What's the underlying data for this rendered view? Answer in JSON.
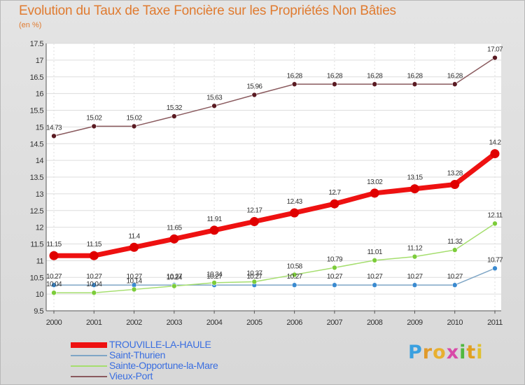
{
  "title": "Evolution du Taux de Taxe Foncière sur les Propriétés Non Bâties",
  "unit": "(en %)",
  "chart_data": {
    "type": "line",
    "categories": [
      "2000",
      "2001",
      "2002",
      "2003",
      "2004",
      "2005",
      "2006",
      "2007",
      "2008",
      "2009",
      "2010",
      "2011"
    ],
    "ylim": [
      9.5,
      17.5
    ],
    "yticks": [
      "9.5",
      "10",
      "10.5",
      "11",
      "11.5",
      "12",
      "12.5",
      "13",
      "13.5",
      "14",
      "14.5",
      "15",
      "15.5",
      "16",
      "16.5",
      "17",
      "17.5"
    ],
    "grid": true,
    "series": [
      {
        "name": "TROUVILLE-LA-HAULE",
        "color": "#ee1111",
        "marker": "#e00000",
        "values": [
          11.15,
          11.15,
          11.4,
          11.65,
          11.91,
          12.17,
          12.43,
          12.7,
          13.02,
          13.15,
          13.28,
          14.2
        ],
        "labels": [
          "11.15",
          "11.15",
          "11.4",
          "11.65",
          "11.91",
          "12.17",
          "12.43",
          "12.7",
          "13.02",
          "13.15",
          "13.28",
          "14.2"
        ]
      },
      {
        "name": "Saint-Thurien",
        "color": "#7fa6c6",
        "marker": "#3a8ad0",
        "values": [
          10.27,
          10.27,
          10.27,
          10.27,
          10.27,
          10.27,
          10.27,
          10.27,
          10.27,
          10.27,
          10.27,
          10.77
        ],
        "labels": [
          "10.27",
          "10.27",
          "10.27",
          "10.27",
          "10.27",
          "10.27",
          "10.27",
          "10.27",
          "10.27",
          "10.27",
          "10.27",
          "10.77"
        ]
      },
      {
        "name": "Sainte-Opportune-la-Mare",
        "color": "#a5de6e",
        "marker": "#7ccc3a",
        "values": [
          10.04,
          10.04,
          10.14,
          10.24,
          10.34,
          10.37,
          10.58,
          10.79,
          11.01,
          11.12,
          11.32,
          12.11
        ],
        "labels": [
          "10.04",
          "10.04",
          "10.14",
          "10.24",
          "10.34",
          "10.37",
          "10.58",
          "10.79",
          "11.01",
          "11.12",
          "11.32",
          "12.11"
        ]
      },
      {
        "name": "Vieux-Port",
        "color": "#8a5a5e",
        "marker": "#5a1a22",
        "values": [
          14.73,
          15.02,
          15.02,
          15.32,
          15.63,
          15.96,
          16.28,
          16.28,
          16.28,
          16.28,
          16.28,
          17.07
        ],
        "labels": [
          "14.73",
          "15.02",
          "15.02",
          "15.32",
          "15.63",
          "15.96",
          "16.28",
          "16.28",
          "16.28",
          "16.28",
          "16.28",
          "17.07"
        ]
      }
    ],
    "legend_position": "bottom-left"
  },
  "legend": {
    "items": [
      {
        "label": "TROUVILLE-LA-HAULE",
        "color": "#ee1111",
        "text_color": "#3a6ee0"
      },
      {
        "label": "Saint-Thurien",
        "color": "#7fa6c6",
        "text_color": "#3a6ee0"
      },
      {
        "label": "Sainte-Opportune-la-Mare",
        "color": "#a5de6e",
        "text_color": "#3a6ee0"
      },
      {
        "label": "Vieux-Port",
        "color": "#8a5a5e",
        "text_color": "#3a6ee0"
      }
    ]
  },
  "logo": {
    "text": "Proxiti",
    "letters": [
      "P",
      "r",
      "o",
      "x",
      "i",
      "t",
      "i"
    ],
    "colors": [
      "#3aa0e0",
      "#e09a2a",
      "#e8b030",
      "#d84aa8",
      "#50b840",
      "#e0a020",
      "#e0c030"
    ]
  }
}
